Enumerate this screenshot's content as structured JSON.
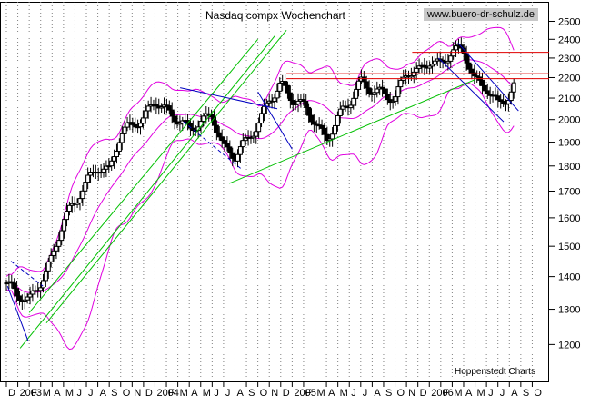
{
  "chart_data": {
    "type": "candlestick",
    "title": "Nasdaq compx Wochenchart",
    "watermark": "www.buero-dr-schulz.de",
    "credit": "Hoppenstedt Charts",
    "y_scale": "log",
    "ylim": [
      1150,
      2560
    ],
    "y_ticks": [
      1200,
      1300,
      1400,
      1500,
      1600,
      1700,
      1800,
      1900,
      2000,
      2100,
      2200,
      2300,
      2400,
      2500
    ],
    "x_range_months": [
      0,
      20.5
    ],
    "x_ticks": [
      {
        "label": "D",
        "m": 0
      },
      {
        "label": "2003",
        "m": 1
      },
      {
        "label": "F",
        "m": 2
      },
      {
        "label": "M",
        "m": 3
      },
      {
        "label": "A",
        "m": 4
      },
      {
        "label": "M",
        "m": 5
      },
      {
        "label": "J",
        "m": 6
      },
      {
        "label": "J",
        "m": 7
      },
      {
        "label": "A",
        "m": 8
      },
      {
        "label": "S",
        "m": 9
      },
      {
        "label": "O",
        "m": 10
      },
      {
        "label": "N",
        "m": 11
      },
      {
        "label": "D",
        "m": 12
      },
      {
        "label": "2004",
        "m": 13
      },
      {
        "label": "F",
        "m": 14
      },
      {
        "label": "M",
        "m": 15
      },
      {
        "label": "A",
        "m": 16
      },
      {
        "label": "M",
        "m": 17
      },
      {
        "label": "J",
        "m": 18
      },
      {
        "label": "J",
        "m": 19
      },
      {
        "label": "A",
        "m": 20
      },
      {
        "label": "S",
        "m": 21
      },
      {
        "label": "O",
        "m": 22
      },
      {
        "label": "N",
        "m": 23
      },
      {
        "label": "D",
        "m": 24
      },
      {
        "label": "2005",
        "m": 25
      },
      {
        "label": "F",
        "m": 26
      },
      {
        "label": "M",
        "m": 27
      },
      {
        "label": "A",
        "m": 28
      },
      {
        "label": "M",
        "m": 29
      },
      {
        "label": "J",
        "m": 30
      },
      {
        "label": "J",
        "m": 31
      },
      {
        "label": "A",
        "m": 32
      },
      {
        "label": "S",
        "m": 33
      },
      {
        "label": "O",
        "m": 34
      },
      {
        "label": "N",
        "m": 35
      },
      {
        "label": "D",
        "m": 36
      },
      {
        "label": "2006",
        "m": 37
      },
      {
        "label": "F",
        "m": 38
      },
      {
        "label": "M",
        "m": 39
      },
      {
        "label": "A",
        "m": 40
      },
      {
        "label": "M",
        "m": 41
      },
      {
        "label": "J",
        "m": 42
      },
      {
        "label": "J",
        "m": 43
      },
      {
        "label": "A",
        "m": 44
      },
      {
        "label": "S",
        "m": 45
      },
      {
        "label": "O",
        "m": 46
      }
    ],
    "grid": "vertical dotted",
    "series": [
      {
        "values_monthly_approx": [
          {
            "m": 0,
            "close": 1380
          },
          {
            "m": 1,
            "close": 1330
          },
          {
            "m": 2,
            "close": 1320
          },
          {
            "m": 3,
            "close": 1390
          },
          {
            "m": 4,
            "close": 1470
          },
          {
            "m": 5,
            "close": 1590
          },
          {
            "m": 6,
            "close": 1640
          },
          {
            "m": 7,
            "close": 1730
          },
          {
            "m": 8,
            "close": 1810
          },
          {
            "m": 9,
            "close": 1790
          },
          {
            "m": 10,
            "close": 1930
          },
          {
            "m": 11,
            "close": 1960
          },
          {
            "m": 12,
            "close": 2000
          },
          {
            "m": 13,
            "close": 2110
          },
          {
            "m": 14,
            "close": 2050
          },
          {
            "m": 15,
            "close": 1990
          },
          {
            "m": 16,
            "close": 1940
          },
          {
            "m": 17,
            "close": 1990
          },
          {
            "m": 18,
            "close": 2040
          },
          {
            "m": 19,
            "close": 1880
          },
          {
            "m": 20,
            "close": 1830
          },
          {
            "m": 21,
            "close": 1890
          },
          {
            "m": 22,
            "close": 1980
          },
          {
            "m": 23,
            "close": 2110
          },
          {
            "m": 24,
            "close": 2170
          },
          {
            "m": 25,
            "close": 2080
          },
          {
            "m": 26,
            "close": 2050
          },
          {
            "m": 27,
            "close": 2000
          },
          {
            "m": 28,
            "close": 1920
          },
          {
            "m": 29,
            "close": 2010
          },
          {
            "m": 30,
            "close": 2060
          },
          {
            "m": 31,
            "close": 2170
          },
          {
            "m": 32,
            "close": 2150
          },
          {
            "m": 33,
            "close": 2140
          },
          {
            "m": 34,
            "close": 2090
          },
          {
            "m": 35,
            "close": 2210
          },
          {
            "m": 36,
            "close": 2220
          },
          {
            "m": 37,
            "close": 2300
          },
          {
            "m": 38,
            "close": 2280
          },
          {
            "m": 39,
            "close": 2330
          },
          {
            "m": 40,
            "close": 2320
          },
          {
            "m": 41,
            "close": 2180
          },
          {
            "m": 42,
            "close": 2170
          },
          {
            "m": 43,
            "close": 2080
          },
          {
            "m": 44,
            "close": 2100
          },
          {
            "m": 44.6,
            "close": 2160
          }
        ]
      }
    ],
    "horizontal_lines": [
      2330,
      2220,
      2195
    ],
    "colors": {
      "candles": "#000000",
      "bollinger": "#e000e0",
      "uptrend": "#00c000",
      "downtrend": "#0000c0",
      "resistance": "#e00000",
      "grid": "#808080",
      "watermark_bg": "#c8c8c8"
    }
  }
}
